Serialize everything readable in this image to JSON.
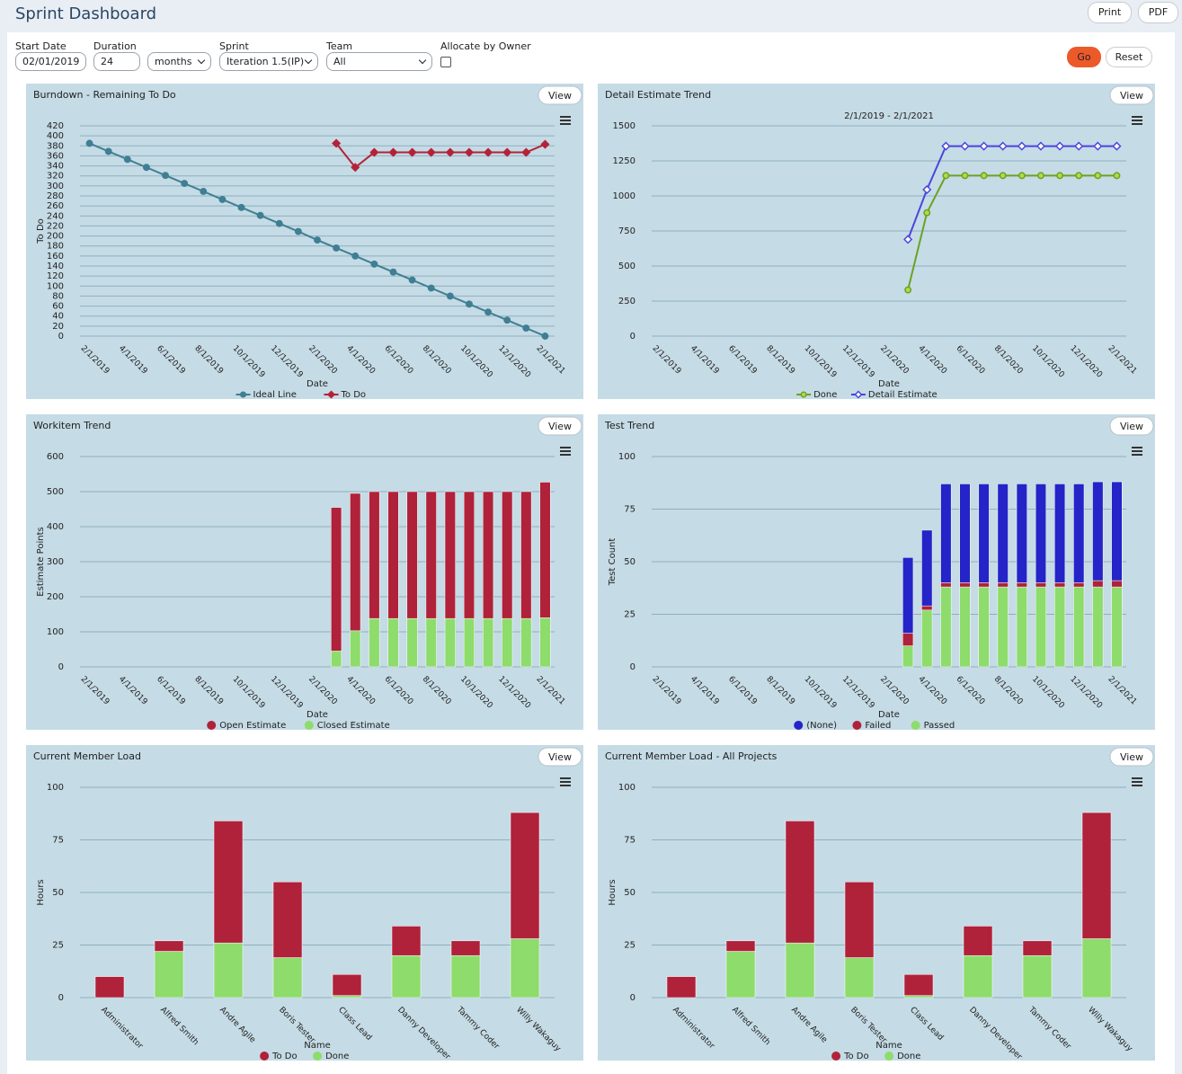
{
  "header": {
    "title": "Sprint Dashboard",
    "buttons": [
      "Print",
      "PDF"
    ]
  },
  "filters": {
    "start_date": {
      "label": "Start Date",
      "value": "02/01/2019"
    },
    "duration": {
      "label": "Duration",
      "value": "24"
    },
    "unit": {
      "value": "months"
    },
    "sprint": {
      "label": "Sprint",
      "value": "Iteration 1.5(IP)"
    },
    "team": {
      "label": "Team",
      "value": "All"
    },
    "allocate": {
      "label": "Allocate by Owner"
    },
    "buttons": [
      "Go",
      "Reset"
    ]
  },
  "chart_data": [
    {
      "type": "line",
      "title": "Burndown - Remaining To Do",
      "button": "View",
      "y_label": "To Do",
      "x_label": "Date",
      "categories": [
        "2/1/2019",
        null,
        "4/1/2019",
        null,
        "6/1/2019",
        null,
        "8/1/2019",
        null,
        "10/1/2019",
        null,
        "12/1/2019",
        null,
        "2/1/2020",
        null,
        "4/1/2020",
        null,
        "6/1/2020",
        null,
        "8/1/2020",
        null,
        "10/1/2020",
        null,
        "12/1/2020",
        null,
        "2/1/2021"
      ],
      "ylim": [
        0,
        420
      ],
      "yticks": [
        0,
        20,
        40,
        60,
        80,
        100,
        120,
        140,
        160,
        180,
        200,
        220,
        240,
        260,
        280,
        300,
        320,
        340,
        360,
        380,
        400,
        420
      ],
      "grid": true,
      "series": [
        {
          "name": "Ideal Line",
          "color": "#3f7f93",
          "marker": "circle",
          "marker_fill": "#3f7f93",
          "values": [
            385,
            369,
            353,
            337,
            321,
            305,
            289,
            273,
            257,
            241,
            225,
            209,
            192,
            176,
            160,
            144,
            128,
            112,
            96,
            80,
            64,
            48,
            32,
            16,
            0
          ]
        },
        {
          "name": "To Do",
          "color": "#b52238",
          "marker": "diamond",
          "marker_fill": "#b52238",
          "values": [
            null,
            null,
            null,
            null,
            null,
            null,
            null,
            null,
            null,
            null,
            null,
            null,
            null,
            385,
            337,
            367,
            367,
            367,
            367,
            367,
            367,
            367,
            367,
            367,
            383
          ]
        }
      ]
    },
    {
      "type": "line",
      "title": "Detail Estimate Trend",
      "subtitle": "2/1/2019 - 2/1/2021",
      "button": "View",
      "x_label": "Date",
      "categories": [
        "2/1/2019",
        null,
        "4/1/2019",
        null,
        "6/1/2019",
        null,
        "8/1/2019",
        null,
        "10/1/2019",
        null,
        "12/1/2019",
        null,
        "2/1/2020",
        null,
        "4/1/2020",
        null,
        "6/1/2020",
        null,
        "8/1/2020",
        null,
        "10/1/2020",
        null,
        "12/1/2020",
        null,
        "2/1/2021"
      ],
      "ylim": [
        0,
        1500
      ],
      "yticks": [
        0,
        250,
        500,
        750,
        1000,
        1250,
        1500
      ],
      "grid": true,
      "series": [
        {
          "name": "Done",
          "color": "#6aa323",
          "marker": "circle",
          "marker_fill": "#b5d84a",
          "values": [
            null,
            null,
            null,
            null,
            null,
            null,
            null,
            null,
            null,
            null,
            null,
            null,
            null,
            330,
            880,
            1145,
            1145,
            1145,
            1145,
            1145,
            1145,
            1145,
            1145,
            1145,
            1145
          ]
        },
        {
          "name": "Detail Estimate",
          "color": "#4a45dd",
          "marker": "diamond",
          "marker_fill": "#ffffff",
          "values": [
            null,
            null,
            null,
            null,
            null,
            null,
            null,
            null,
            null,
            null,
            null,
            null,
            null,
            690,
            1045,
            1355,
            1355,
            1355,
            1355,
            1355,
            1355,
            1355,
            1355,
            1355,
            1355
          ]
        }
      ]
    },
    {
      "type": "bar",
      "stacked": true,
      "title": "Workitem Trend",
      "button": "View",
      "y_label": "Estimate Points",
      "x_label": "Date",
      "categories": [
        "2/1/2019",
        null,
        "4/1/2019",
        null,
        "6/1/2019",
        null,
        "8/1/2019",
        null,
        "10/1/2019",
        null,
        "12/1/2019",
        null,
        "2/1/2020",
        null,
        "4/1/2020",
        null,
        "6/1/2020",
        null,
        "8/1/2020",
        null,
        "10/1/2020",
        null,
        "12/1/2020",
        null,
        "2/1/2021"
      ],
      "ylim": [
        0,
        600
      ],
      "yticks": [
        0,
        100,
        200,
        300,
        400,
        500,
        600
      ],
      "grid": true,
      "series": [
        {
          "name": "Open Estimate",
          "color": "#b0213a",
          "values": [
            null,
            null,
            null,
            null,
            null,
            null,
            null,
            null,
            null,
            null,
            null,
            null,
            null,
            410,
            392,
            362,
            362,
            362,
            362,
            362,
            362,
            362,
            362,
            362,
            387
          ]
        },
        {
          "name": "Closed Estimate",
          "color": "#8ddc6c",
          "values": [
            null,
            null,
            null,
            null,
            null,
            null,
            null,
            null,
            null,
            null,
            null,
            null,
            null,
            45,
            103,
            138,
            138,
            138,
            138,
            138,
            138,
            138,
            138,
            138,
            140
          ]
        }
      ]
    },
    {
      "type": "bar",
      "stacked": true,
      "title": "Test Trend",
      "button": "View",
      "y_label": "Test Count",
      "x_label": "Date",
      "categories": [
        "2/1/2019",
        null,
        "4/1/2019",
        null,
        "6/1/2019",
        null,
        "8/1/2019",
        null,
        "10/1/2019",
        null,
        "12/1/2019",
        null,
        "2/1/2020",
        null,
        "4/1/2020",
        null,
        "6/1/2020",
        null,
        "8/1/2020",
        null,
        "10/1/2020",
        null,
        "12/1/2020",
        null,
        "2/1/2021"
      ],
      "ylim": [
        0,
        100
      ],
      "yticks": [
        0,
        25,
        50,
        75,
        100
      ],
      "grid": true,
      "series": [
        {
          "name": "(None)",
          "color": "#2424c8",
          "values": [
            null,
            null,
            null,
            null,
            null,
            null,
            null,
            null,
            null,
            null,
            null,
            null,
            null,
            36,
            36,
            47,
            47,
            47,
            47,
            47,
            47,
            47,
            47,
            47,
            47
          ]
        },
        {
          "name": "Failed",
          "color": "#b0213a",
          "values": [
            null,
            null,
            null,
            null,
            null,
            null,
            null,
            null,
            null,
            null,
            null,
            null,
            null,
            6,
            2,
            2,
            2,
            2,
            2,
            2,
            2,
            2,
            2,
            3,
            3
          ]
        },
        {
          "name": "Passed",
          "color": "#8ddc6c",
          "values": [
            null,
            null,
            null,
            null,
            null,
            null,
            null,
            null,
            null,
            null,
            null,
            null,
            null,
            10,
            27,
            38,
            38,
            38,
            38,
            38,
            38,
            38,
            38,
            38,
            38
          ]
        }
      ]
    },
    {
      "type": "bar",
      "stacked": true,
      "title": "Current Member Load",
      "button": "View",
      "y_label": "Hours",
      "x_label": "Name",
      "categories": [
        "Administrator",
        "Alfred Smith",
        "Andre Agile",
        "Boris Tester",
        "Class Lead",
        "Danny Developer",
        "Tammy Coder",
        "Willy Wakaguy"
      ],
      "ylim": [
        0,
        100
      ],
      "yticks": [
        0,
        25,
        50,
        75,
        100
      ],
      "grid": true,
      "series": [
        {
          "name": "To Do",
          "color": "#b0213a",
          "values": [
            10,
            5,
            58,
            36,
            10,
            14,
            7,
            60
          ]
        },
        {
          "name": "Done",
          "color": "#8ddc6c",
          "values": [
            0,
            22,
            26,
            19,
            1,
            20,
            20,
            28
          ]
        }
      ]
    },
    {
      "type": "bar",
      "stacked": true,
      "title": "Current Member Load - All Projects",
      "button": "View",
      "y_label": "Hours",
      "x_label": "Name",
      "categories": [
        "Administrator",
        "Alfred Smith",
        "Andre Agile",
        "Boris Tester",
        "Class Lead",
        "Danny Developer",
        "Tammy Coder",
        "Willy Wakaguy"
      ],
      "ylim": [
        0,
        100
      ],
      "yticks": [
        0,
        25,
        50,
        75,
        100
      ],
      "grid": true,
      "series": [
        {
          "name": "To Do",
          "color": "#b0213a",
          "values": [
            10,
            5,
            58,
            36,
            10,
            14,
            7,
            60
          ]
        },
        {
          "name": "Done",
          "color": "#8ddc6c",
          "values": [
            0,
            22,
            26,
            19,
            1,
            20,
            20,
            28
          ]
        }
      ]
    }
  ]
}
